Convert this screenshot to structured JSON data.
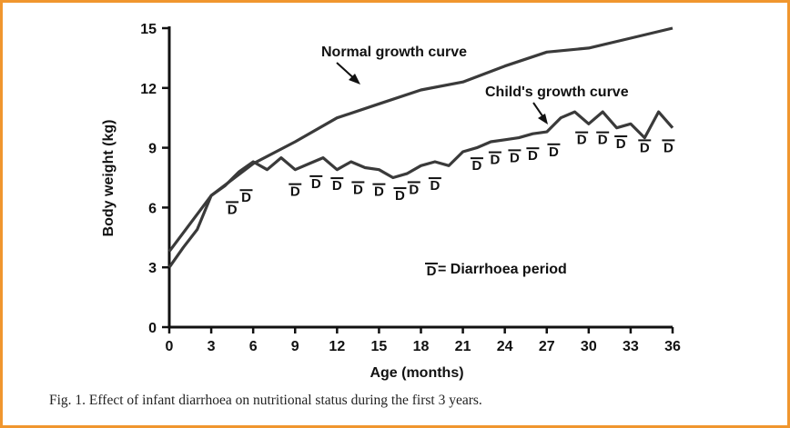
{
  "chart_data": {
    "type": "line",
    "xlabel": "Age (months)",
    "ylabel": "Body weight (kg)",
    "xlim": [
      0,
      36
    ],
    "ylim": [
      0,
      15
    ],
    "xticks": [
      "0",
      "3",
      "6",
      "9",
      "12",
      "15",
      "18",
      "21",
      "24",
      "27",
      "30",
      "33",
      "36"
    ],
    "yticks": [
      "0",
      "3",
      "6",
      "9",
      "12",
      "15"
    ],
    "series": [
      {
        "name": "Normal growth curve",
        "points": [
          [
            0,
            3.8
          ],
          [
            3,
            6.6
          ],
          [
            6,
            8.2
          ],
          [
            9,
            9.3
          ],
          [
            12,
            10.5
          ],
          [
            15,
            11.2
          ],
          [
            18,
            11.9
          ],
          [
            21,
            12.3
          ],
          [
            24,
            13.1
          ],
          [
            27,
            13.8
          ],
          [
            30,
            14.0
          ],
          [
            33,
            14.5
          ],
          [
            36,
            15.0
          ]
        ]
      },
      {
        "name": "Child's growth curve",
        "points": [
          [
            0,
            3.0
          ],
          [
            1,
            4.0
          ],
          [
            2,
            4.9
          ],
          [
            3,
            6.6
          ],
          [
            4,
            7.1
          ],
          [
            5,
            7.8
          ],
          [
            6,
            8.3
          ],
          [
            7,
            7.9
          ],
          [
            8,
            8.5
          ],
          [
            9,
            7.9
          ],
          [
            10,
            8.2
          ],
          [
            11,
            8.5
          ],
          [
            12,
            7.9
          ],
          [
            13,
            8.3
          ],
          [
            14,
            8.0
          ],
          [
            15,
            7.9
          ],
          [
            16,
            7.5
          ],
          [
            17,
            7.7
          ],
          [
            18,
            8.1
          ],
          [
            19,
            8.3
          ],
          [
            20,
            8.1
          ],
          [
            21,
            8.8
          ],
          [
            22,
            9.0
          ],
          [
            23,
            9.3
          ],
          [
            24,
            9.4
          ],
          [
            25,
            9.5
          ],
          [
            26,
            9.7
          ],
          [
            27,
            9.8
          ],
          [
            28,
            10.5
          ],
          [
            29,
            10.8
          ],
          [
            30,
            10.2
          ],
          [
            31,
            10.8
          ],
          [
            32,
            10.0
          ],
          [
            33,
            10.2
          ],
          [
            34,
            9.5
          ],
          [
            35,
            10.8
          ],
          [
            36,
            10.0
          ]
        ]
      }
    ],
    "diarrhoea_marker": "D",
    "diarrhoea_episodes": [
      [
        4.5,
        6.0
      ],
      [
        5.5,
        6.6
      ],
      [
        9,
        6.9
      ],
      [
        10.5,
        7.3
      ],
      [
        12,
        7.2
      ],
      [
        13.5,
        7.0
      ],
      [
        15,
        6.9
      ],
      [
        16.5,
        6.7
      ],
      [
        17.5,
        7.0
      ],
      [
        19,
        7.2
      ],
      [
        22,
        8.2
      ],
      [
        23.3,
        8.5
      ],
      [
        24.7,
        8.6
      ],
      [
        26,
        8.7
      ],
      [
        27.5,
        8.9
      ],
      [
        29.5,
        9.5
      ],
      [
        31,
        9.5
      ],
      [
        32.3,
        9.3
      ],
      [
        34,
        9.1
      ],
      [
        35.7,
        9.1
      ]
    ],
    "annotations": {
      "normal_label": "Normal growth curve",
      "child_label": "Child's growth curve",
      "legend_text": "= Diarrhoea period"
    }
  },
  "caption": "Fig. 1.  Effect of infant diarrhoea on nutritional status during the first 3 years."
}
